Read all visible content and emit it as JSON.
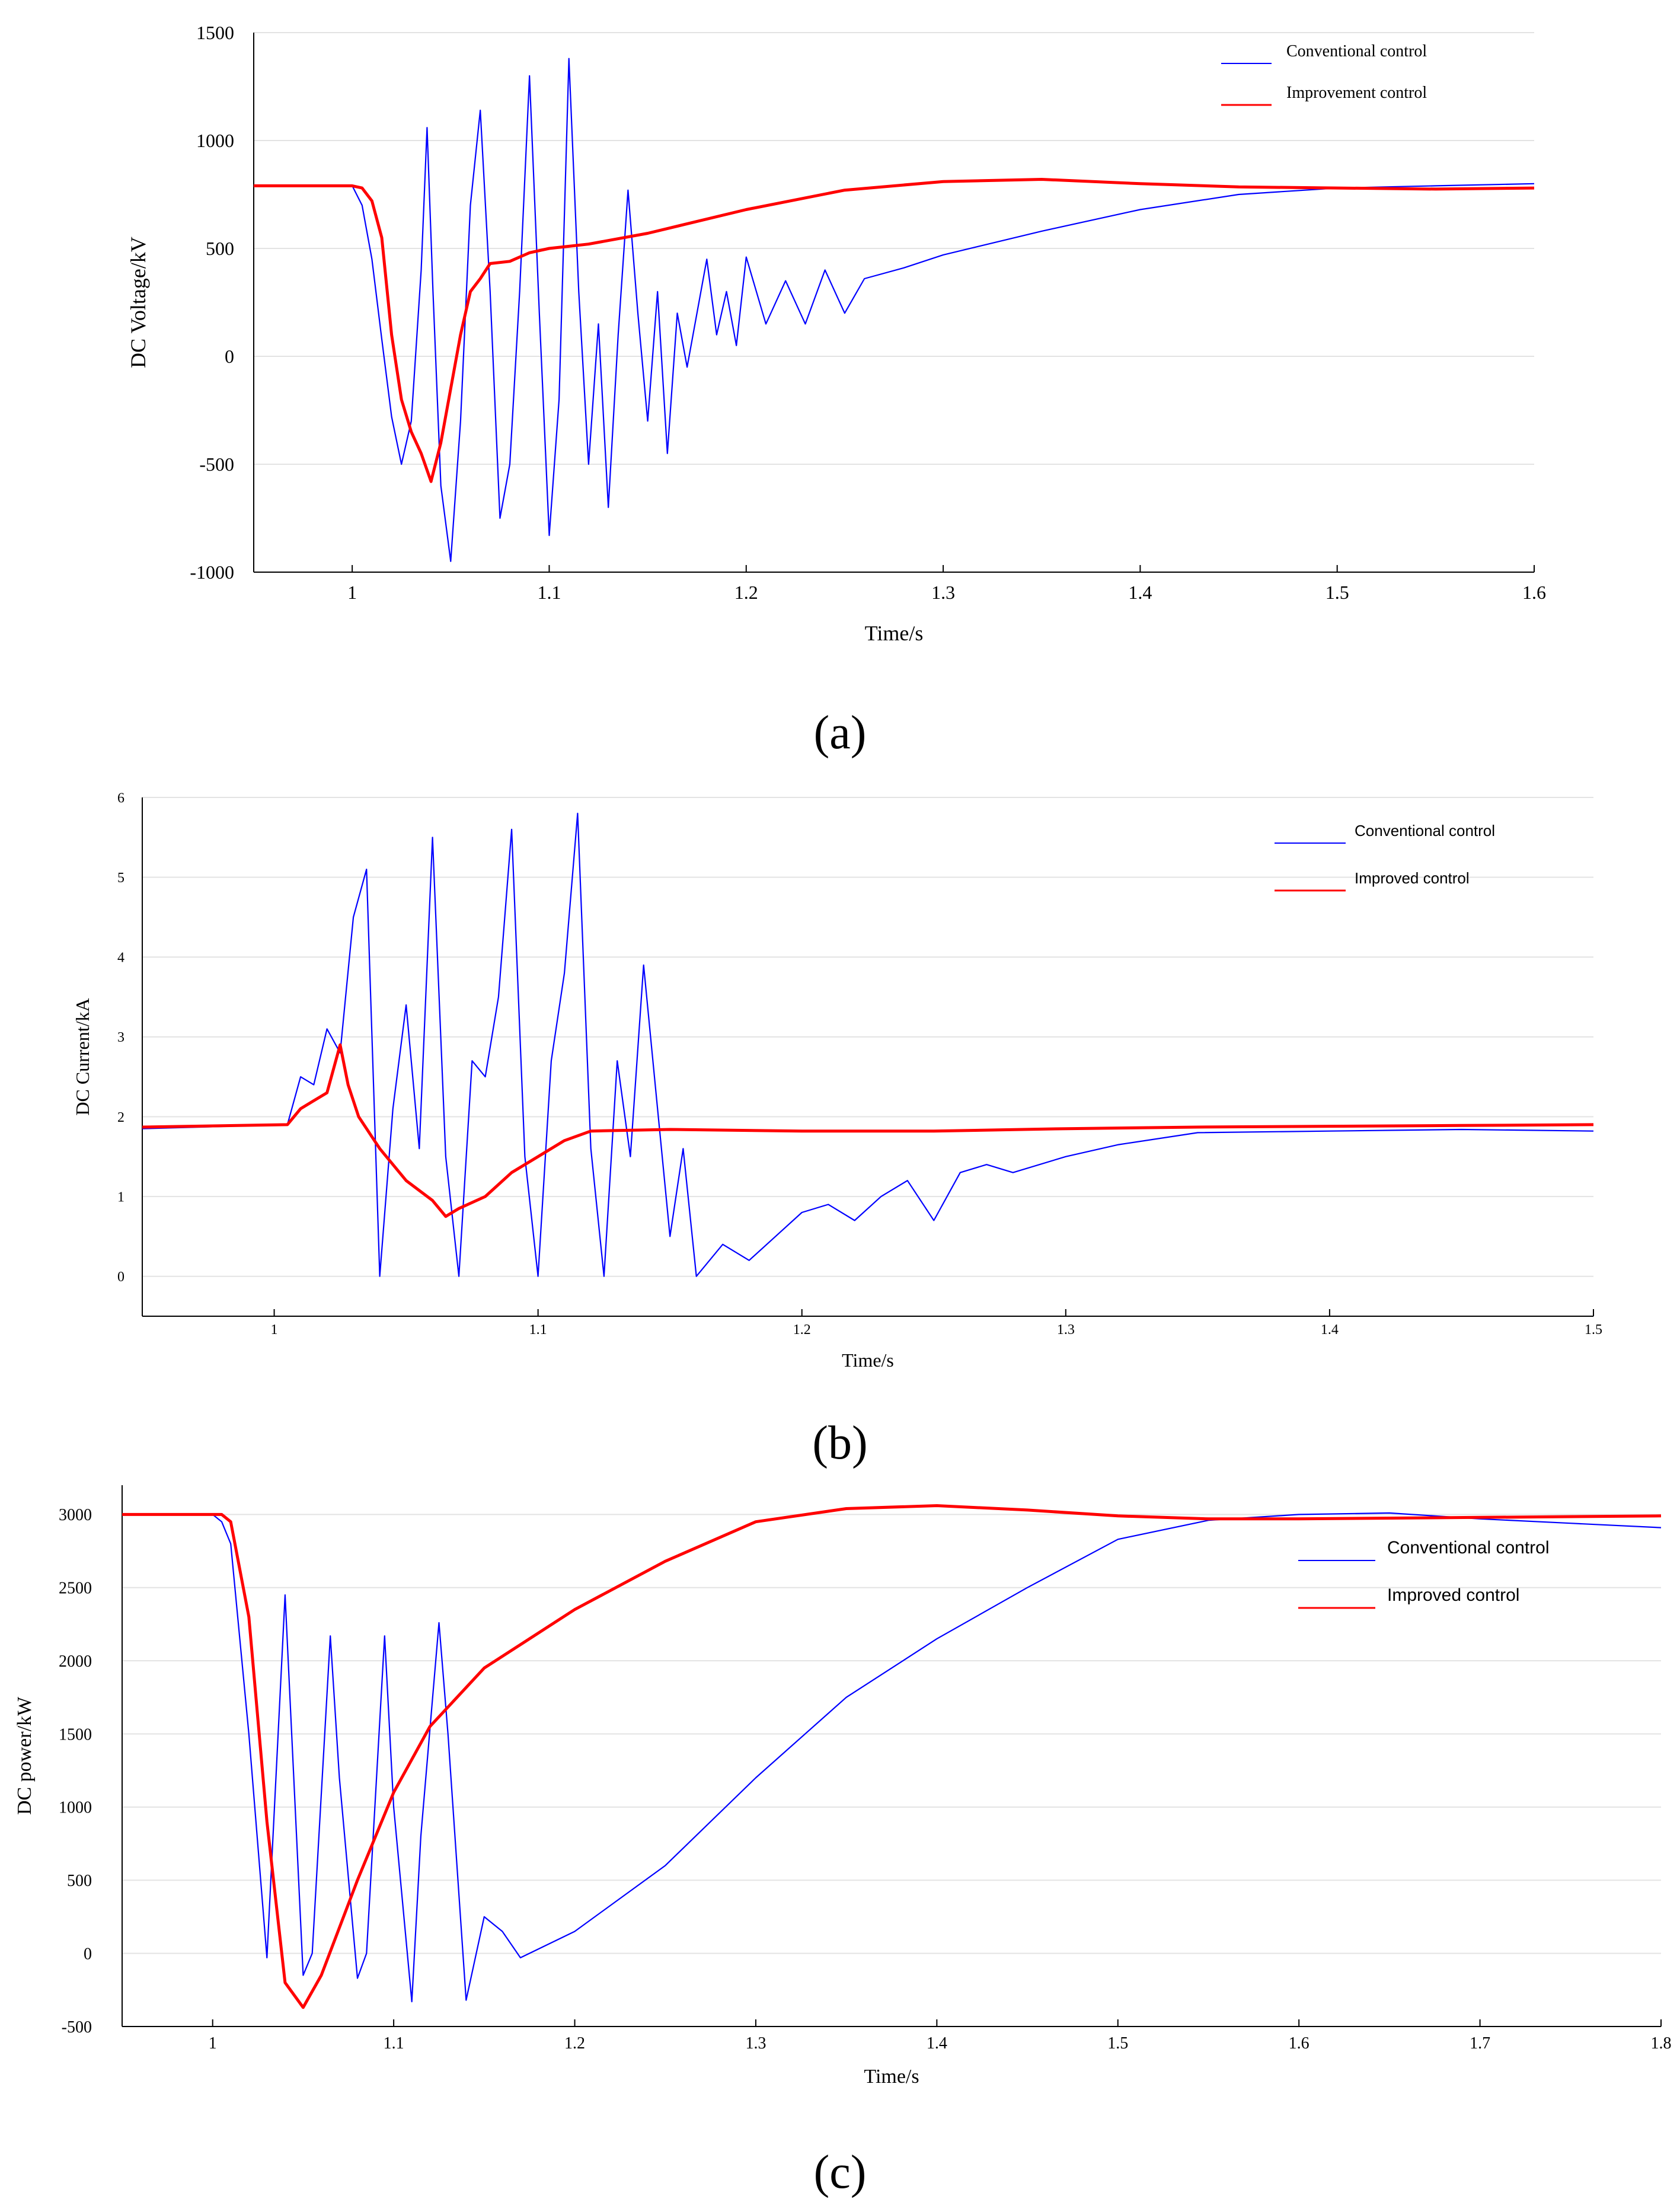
{
  "figure": {
    "panel_labels": [
      "(a)",
      "(b)",
      "(c)"
    ]
  },
  "chart_data": [
    {
      "id": "a",
      "type": "line",
      "title": "",
      "xlabel": "Time/s",
      "ylabel": "DC Voltage/kV",
      "xlim": [
        0.95,
        1.6
      ],
      "ylim": [
        -1000,
        1500
      ],
      "xticks": [
        1,
        1.1,
        1.2,
        1.3,
        1.4,
        1.5,
        1.6
      ],
      "xtick_labels": [
        "1",
        "1.1",
        "1.2",
        "1.3",
        "1.4",
        "1.5",
        "1.6"
      ],
      "yticks": [
        -1000,
        -500,
        0,
        500,
        1000,
        1500
      ],
      "ytick_labels": [
        "-1000",
        "-500",
        "0",
        "500",
        "1000",
        "1500"
      ],
      "grid": true,
      "legend_position": "top-right",
      "series": [
        {
          "name": "Conventional control",
          "color": "#0000ff",
          "x": [
            0.95,
            1.0,
            1.005,
            1.01,
            1.015,
            1.02,
            1.025,
            1.03,
            1.035,
            1.038,
            1.041,
            1.045,
            1.05,
            1.055,
            1.06,
            1.065,
            1.07,
            1.075,
            1.08,
            1.085,
            1.09,
            1.095,
            1.1,
            1.105,
            1.11,
            1.115,
            1.12,
            1.125,
            1.13,
            1.135,
            1.14,
            1.145,
            1.15,
            1.155,
            1.16,
            1.165,
            1.17,
            1.175,
            1.18,
            1.185,
            1.19,
            1.195,
            1.2,
            1.21,
            1.22,
            1.23,
            1.24,
            1.25,
            1.26,
            1.28,
            1.3,
            1.35,
            1.4,
            1.45,
            1.5,
            1.55,
            1.6
          ],
          "y": [
            790,
            790,
            700,
            450,
            80,
            -280,
            -500,
            -300,
            400,
            1060,
            300,
            -600,
            -950,
            -300,
            700,
            1140,
            300,
            -750,
            -500,
            300,
            1300,
            200,
            -830,
            -200,
            1380,
            300,
            -500,
            150,
            -700,
            100,
            770,
            200,
            -300,
            300,
            -450,
            200,
            -50,
            200,
            450,
            100,
            300,
            50,
            460,
            150,
            350,
            150,
            400,
            200,
            360,
            410,
            470,
            580,
            680,
            750,
            780,
            790,
            800
          ]
        },
        {
          "name": "Improvement control",
          "color": "#ff0000",
          "x": [
            0.95,
            1.0,
            1.005,
            1.01,
            1.015,
            1.02,
            1.025,
            1.03,
            1.035,
            1.04,
            1.045,
            1.05,
            1.055,
            1.06,
            1.065,
            1.07,
            1.08,
            1.09,
            1.1,
            1.11,
            1.12,
            1.15,
            1.2,
            1.25,
            1.3,
            1.35,
            1.4,
            1.45,
            1.5,
            1.55,
            1.6
          ],
          "y": [
            790,
            790,
            780,
            720,
            550,
            100,
            -200,
            -350,
            -450,
            -580,
            -400,
            -150,
            100,
            300,
            360,
            430,
            440,
            480,
            500,
            510,
            520,
            570,
            680,
            770,
            810,
            820,
            800,
            785,
            780,
            775,
            780
          ]
        }
      ]
    },
    {
      "id": "b",
      "type": "line",
      "title": "",
      "xlabel": "Time/s",
      "ylabel": "DC Current/kA",
      "xlim": [
        0.95,
        1.5
      ],
      "ylim": [
        -0.5,
        6
      ],
      "xticks": [
        1,
        1.1,
        1.2,
        1.3,
        1.4,
        1.5
      ],
      "xtick_labels": [
        "1",
        "1.1",
        "1.2",
        "1.3",
        "1.4",
        "1.5"
      ],
      "yticks": [
        0,
        1,
        2,
        3,
        4,
        5,
        6
      ],
      "ytick_labels": [
        "0",
        "1",
        "2",
        "3",
        "4",
        "5",
        "6"
      ],
      "grid": true,
      "legend_position": "top-right",
      "series": [
        {
          "name": "Conventional control",
          "color": "#0000ff",
          "x": [
            0.95,
            1.005,
            1.01,
            1.015,
            1.02,
            1.025,
            1.03,
            1.035,
            1.04,
            1.045,
            1.05,
            1.055,
            1.06,
            1.065,
            1.07,
            1.075,
            1.08,
            1.085,
            1.09,
            1.095,
            1.1,
            1.105,
            1.11,
            1.115,
            1.12,
            1.125,
            1.13,
            1.135,
            1.14,
            1.145,
            1.15,
            1.155,
            1.16,
            1.17,
            1.18,
            1.19,
            1.2,
            1.21,
            1.22,
            1.23,
            1.24,
            1.25,
            1.26,
            1.27,
            1.28,
            1.3,
            1.32,
            1.35,
            1.4,
            1.45,
            1.5
          ],
          "y": [
            1.85,
            1.9,
            2.5,
            2.4,
            3.1,
            2.8,
            4.5,
            5.1,
            0.0,
            2.1,
            3.4,
            1.6,
            5.5,
            1.5,
            0.0,
            2.7,
            2.5,
            3.5,
            5.6,
            1.5,
            0.0,
            2.7,
            3.8,
            5.8,
            1.6,
            0.0,
            2.7,
            1.5,
            3.9,
            2.2,
            0.5,
            1.6,
            0.0,
            0.4,
            0.2,
            0.5,
            0.8,
            0.9,
            0.7,
            1.0,
            1.2,
            0.7,
            1.3,
            1.4,
            1.3,
            1.5,
            1.65,
            1.8,
            1.82,
            1.84,
            1.82
          ]
        },
        {
          "name": "Improved control",
          "color": "#ff0000",
          "x": [
            0.95,
            1.005,
            1.01,
            1.015,
            1.02,
            1.025,
            1.028,
            1.032,
            1.04,
            1.05,
            1.06,
            1.065,
            1.07,
            1.08,
            1.09,
            1.1,
            1.11,
            1.12,
            1.15,
            1.2,
            1.25,
            1.3,
            1.35,
            1.4,
            1.45,
            1.5
          ],
          "y": [
            1.87,
            1.9,
            2.1,
            2.2,
            2.3,
            2.9,
            2.4,
            2.0,
            1.6,
            1.2,
            0.95,
            0.75,
            0.85,
            1.0,
            1.3,
            1.5,
            1.7,
            1.82,
            1.84,
            1.82,
            1.82,
            1.85,
            1.87,
            1.88,
            1.89,
            1.9
          ]
        }
      ]
    },
    {
      "id": "c",
      "type": "line",
      "title": "",
      "xlabel": "Time/s",
      "ylabel": "DC power/kW",
      "xlim": [
        0.95,
        1.8
      ],
      "ylim": [
        -500,
        3200
      ],
      "xticks": [
        1,
        1.1,
        1.2,
        1.3,
        1.4,
        1.5,
        1.6,
        1.7,
        1.8
      ],
      "xtick_labels": [
        "1",
        "1.1",
        "1.2",
        "1.3",
        "1.4",
        "1.5",
        "1.6",
        "1.7",
        "1.8"
      ],
      "yticks": [
        -500,
        0,
        500,
        1000,
        1500,
        2000,
        2500,
        3000
      ],
      "ytick_labels": [
        "-500",
        "0",
        "500",
        "1000",
        "1500",
        "2000",
        "2500",
        "3000"
      ],
      "grid": true,
      "legend_position": "right",
      "series": [
        {
          "name": "Conventional control",
          "color": "#0000ff",
          "x": [
            0.95,
            1.0,
            1.005,
            1.01,
            1.02,
            1.03,
            1.04,
            1.05,
            1.055,
            1.065,
            1.07,
            1.08,
            1.085,
            1.095,
            1.1,
            1.11,
            1.115,
            1.125,
            1.13,
            1.14,
            1.15,
            1.16,
            1.17,
            1.2,
            1.25,
            1.3,
            1.35,
            1.4,
            1.45,
            1.5,
            1.55,
            1.6,
            1.65,
            1.7,
            1.75,
            1.8
          ],
          "y": [
            3000,
            3000,
            2950,
            2800,
            1500,
            -30,
            2450,
            -150,
            0,
            2170,
            1200,
            -170,
            0,
            2170,
            1000,
            -330,
            800,
            2260,
            1500,
            -320,
            250,
            150,
            -30,
            150,
            600,
            1200,
            1750,
            2150,
            2500,
            2830,
            2960,
            3000,
            3010,
            2970,
            2940,
            2910
          ]
        },
        {
          "name": "Improved control",
          "color": "#ff0000",
          "x": [
            0.95,
            1.005,
            1.01,
            1.02,
            1.03,
            1.04,
            1.05,
            1.06,
            1.08,
            1.1,
            1.12,
            1.15,
            1.2,
            1.25,
            1.3,
            1.35,
            1.4,
            1.45,
            1.5,
            1.55,
            1.6,
            1.7,
            1.8
          ],
          "y": [
            3000,
            3000,
            2950,
            2300,
            900,
            -200,
            -370,
            -150,
            500,
            1100,
            1550,
            1950,
            2350,
            2680,
            2950,
            3040,
            3060,
            3030,
            2990,
            2970,
            2970,
            2980,
            2990
          ]
        }
      ]
    }
  ]
}
